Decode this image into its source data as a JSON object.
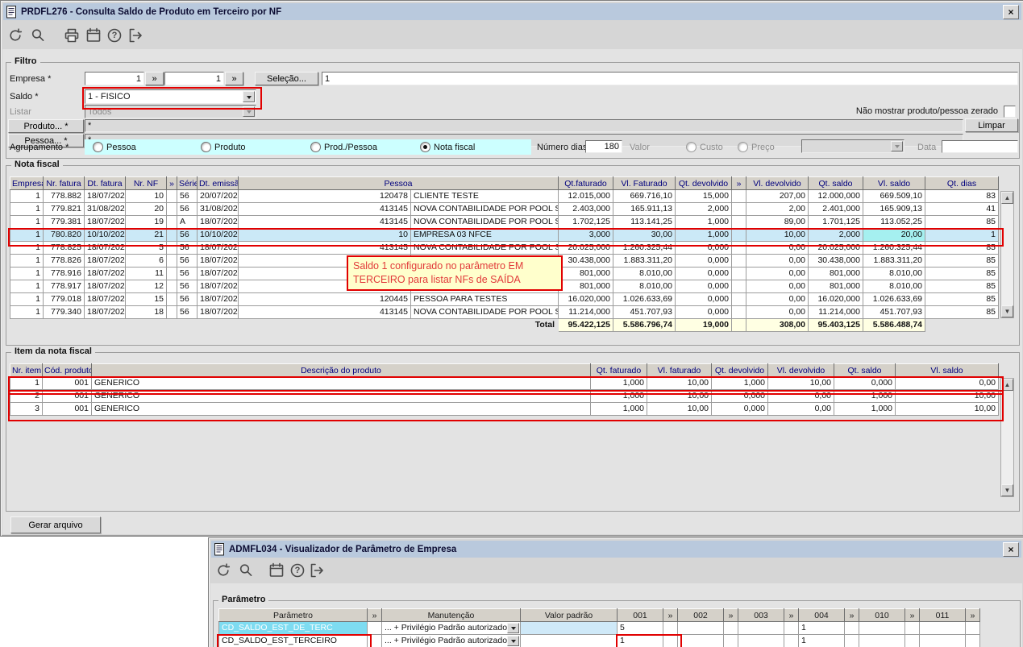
{
  "chrome": {
    "close_glyph": "×",
    "help_glyph": "?",
    "scroll_up_glyph": "▲",
    "scroll_down_glyph": "▼"
  },
  "colors": {
    "titlebar_bg": "#b9c9dd",
    "window_bg": "#d6d6d6",
    "client_bg": "#e3e3e3",
    "grid_header_bg": "#d5d1c9",
    "grid_header_text": "#00007d",
    "selected_row_bg": "#cbe9f7",
    "selected_cell_bg": "#a5f0f0",
    "total_row_bg": "#ffffe3",
    "highlight_red": "#e10000",
    "annotation_bg": "#ffffcc",
    "agrupamento_band_bg": "#ccffff",
    "param_selected_bg": "#7edcf1",
    "param_current_cell_bg": "#cfe9f8"
  },
  "window1": {
    "title": "PRDFL276 - Consulta Saldo de Produto em Terceiro por NF",
    "toolbar_icons": [
      "undo-icon",
      "search-icon",
      "print-icon",
      "calendar-icon",
      "help-icon",
      "exit-icon"
    ],
    "filter": {
      "legend": "Filtro",
      "expand_glyph": "»",
      "empresa_label": "Empresa *",
      "empresa_from": "1",
      "empresa_to": "1",
      "selecao_button": "Seleção...",
      "empresa_text": "1",
      "saldo_label": "Saldo *",
      "saldo_value": "1 - FISICO",
      "listar_label": "Listar",
      "listar_value": "Todos",
      "produto_button": "Produto... *",
      "produto_value": "*",
      "pessoa_button": "Pessoa... *",
      "pessoa_value": "*",
      "agrupamento_label": "Agrupamento *",
      "agrupamento_options": [
        "Pessoa",
        "Produto",
        "Prod./Pessoa",
        "Nota fiscal"
      ],
      "agrupamento_selected": "Nota fiscal",
      "zerado_checkbox_label": "Não mostrar produto/pessoa zerado",
      "zerado_checked": false,
      "limpar_button": "Limpar",
      "numero_dias_label": "Número dias",
      "numero_dias_value": "180",
      "valor_label": "Valor",
      "valor_options": [
        "Custo",
        "Preço"
      ],
      "data_label": "Data",
      "data_value": ""
    },
    "nota_fiscal": {
      "legend": "Nota fiscal",
      "columns": [
        "Empresa",
        "Nr. fatura",
        "Dt. fatura",
        "Nr. NF",
        "»",
        "Série",
        "Dt. emissão",
        "Pessoa",
        "Qt.faturado",
        "Vl. Faturado",
        "Qt. devolvido",
        "»",
        "Vl. devolvido",
        "Qt. saldo",
        "Vl. saldo",
        "Qt. dias"
      ],
      "rows": [
        [
          "1",
          "778.882",
          "18/07/2023",
          "10",
          "",
          "56",
          "20/07/2023",
          "120478",
          "CLIENTE TESTE",
          "12.015,000",
          "669.716,10",
          "15,000",
          "",
          "207,00",
          "12.000,000",
          "669.509,10",
          "83"
        ],
        [
          "1",
          "779.821",
          "31/08/2023",
          "20",
          "",
          "56",
          "31/08/2023",
          "413145",
          "NOVA CONTABILIDADE POR POOL SPED",
          "2.403,000",
          "165.911,13",
          "2,000",
          "",
          "2,00",
          "2.401,000",
          "165.909,13",
          "41"
        ],
        [
          "1",
          "779.381",
          "18/07/2023",
          "19",
          "",
          "A",
          "18/07/2023",
          "413145",
          "NOVA CONTABILIDADE POR POOL SPED",
          "1.702,125",
          "113.141,25",
          "1,000",
          "",
          "89,00",
          "1.701,125",
          "113.052,25",
          "85"
        ],
        [
          "1",
          "780.820",
          "10/10/2023",
          "21",
          "",
          "56",
          "10/10/2023",
          "10",
          "EMPRESA 03 NFCE",
          "3,000",
          "30,00",
          "1,000",
          "",
          "10,00",
          "2,000",
          "20,00",
          "1"
        ],
        [
          "1",
          "778.825",
          "18/07/2023",
          "5",
          "",
          "56",
          "18/07/2023",
          "413145",
          "NOVA CONTABILIDADE POR POOL SPED",
          "20.025,000",
          "1.260.325,44",
          "0,000",
          "",
          "0,00",
          "20.025,000",
          "1.260.325,44",
          "85"
        ],
        [
          "1",
          "778.826",
          "18/07/2023",
          "6",
          "",
          "56",
          "18/07/2023",
          "",
          "",
          "30.438,000",
          "1.883.311,20",
          "0,000",
          "",
          "0,00",
          "30.438,000",
          "1.883.311,20",
          "85"
        ],
        [
          "1",
          "778.916",
          "18/07/2023",
          "11",
          "",
          "56",
          "18/07/2023",
          "",
          "",
          "801,000",
          "8.010,00",
          "0,000",
          "",
          "0,00",
          "801,000",
          "8.010,00",
          "85"
        ],
        [
          "1",
          "778.917",
          "18/07/2023",
          "12",
          "",
          "56",
          "18/07/2023",
          "",
          "",
          "801,000",
          "8.010,00",
          "0,000",
          "",
          "0,00",
          "801,000",
          "8.010,00",
          "85"
        ],
        [
          "1",
          "779.018",
          "18/07/2023",
          "15",
          "",
          "56",
          "18/07/2023",
          "120445",
          "PESSOA PARA TESTES",
          "16.020,000",
          "1.026.633,69",
          "0,000",
          "",
          "0,00",
          "16.020,000",
          "1.026.633,69",
          "85"
        ],
        [
          "1",
          "779.340",
          "18/07/2023",
          "18",
          "",
          "56",
          "18/07/2023",
          "413145",
          "NOVA CONTABILIDADE POR POOL SPED",
          "11.214,000",
          "451.707,93",
          "0,000",
          "",
          "0,00",
          "11.214,000",
          "451.707,93",
          "85"
        ]
      ],
      "selected_row_index": 3,
      "total_label": "Total",
      "totals": [
        "95.422,125",
        "5.586.796,74",
        "19,000",
        "308,00",
        "95.403,125",
        "5.586.488,74"
      ],
      "annotation": "Saldo 1 configurado no parâmetro EM TERCEIRO para listar NFs de SAÍDA"
    },
    "item_nota_fiscal": {
      "legend": "Item da nota fiscal",
      "columns": [
        "Nr. item",
        "Cód. produto",
        "Descrição do produto",
        "Qt. faturado",
        "Vl. faturado",
        "Qt. devolvido",
        "Vl. devolvido",
        "Qt. saldo",
        "Vl. saldo"
      ],
      "rows": [
        [
          "1",
          "001",
          "GENERICO",
          "1,000",
          "10,00",
          "1,000",
          "10,00",
          "0,000",
          "0,00"
        ],
        [
          "2",
          "001",
          "GENERICO",
          "1,000",
          "10,00",
          "0,000",
          "0,00",
          "1,000",
          "10,00"
        ],
        [
          "3",
          "001",
          "GENERICO",
          "1,000",
          "10,00",
          "0,000",
          "0,00",
          "1,000",
          "10,00"
        ]
      ]
    },
    "gerar_arquivo_button": "Gerar arquivo"
  },
  "window2": {
    "title": "ADMFL034 - Visualizador de Parâmetro de Empresa",
    "toolbar_icons": [
      "undo-icon",
      "search-icon",
      "calendar-icon",
      "help-icon",
      "exit-icon"
    ],
    "parametro": {
      "legend": "Parâmetro",
      "columns": [
        "Parâmetro",
        "»",
        "Manutenção",
        "Valor padrão",
        "001",
        "»",
        "002",
        "»",
        "003",
        "»",
        "004",
        "»",
        "010",
        "»",
        "011",
        "»"
      ],
      "rows": [
        [
          "CD_SALDO_EST_DE_TERC",
          "",
          "... + Privilégio Padrão autorizado",
          "",
          "5",
          "",
          "",
          "",
          "",
          "",
          "1",
          "",
          "",
          "",
          "",
          ""
        ],
        [
          "CD_SALDO_EST_TERCEIRO",
          "",
          "... + Privilégio Padrão autorizado",
          "",
          "1",
          "",
          "",
          "",
          "",
          "",
          "1",
          "",
          "",
          "",
          "",
          ""
        ]
      ],
      "selected_row_index": 0
    }
  }
}
